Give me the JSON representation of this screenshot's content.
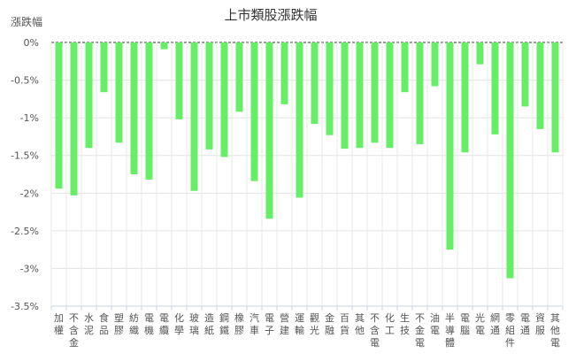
{
  "chart_data": {
    "type": "bar",
    "title": "上市類股漲跌幅",
    "ylabel": "漲跌幅",
    "xlabel": "",
    "ylim": [
      -3.5,
      0
    ],
    "yticks": [
      0,
      -0.5,
      -1,
      -1.5,
      -2,
      -2.5,
      -3,
      -3.5
    ],
    "ytick_labels": [
      "0%",
      "-0.5%",
      "-1%",
      "-1.5%",
      "-2%",
      "-2.5%",
      "-3%",
      "-3.5%"
    ],
    "grid": true,
    "bar_color": "#66ee66",
    "categories": [
      "加權",
      "不含金",
      "水泥",
      "食品",
      "塑膠",
      "紡織",
      "電機",
      "電纜",
      "化學",
      "玻璃",
      "造紙",
      "鋼鐵",
      "橡膠",
      "汽車",
      "電子",
      "營建",
      "運輸",
      "觀光",
      "金融",
      "百貨",
      "其他",
      "不含電",
      "化工",
      "生技",
      "不金電",
      "油電",
      "半導體",
      "電腦",
      "光電",
      "網通",
      "零組件",
      "電通",
      "資服",
      "其他電"
    ],
    "values": [
      -1.94,
      -2.03,
      -1.4,
      -0.66,
      -1.33,
      -1.75,
      -1.82,
      -0.09,
      -1.02,
      -1.97,
      -1.42,
      -1.52,
      -0.92,
      -1.84,
      -2.34,
      -0.82,
      -2.06,
      -1.08,
      -1.23,
      -1.41,
      -1.4,
      -1.33,
      -1.4,
      -0.66,
      -1.35,
      -0.58,
      -2.75,
      -1.46,
      -0.29,
      -1.22,
      -3.13,
      -0.85,
      -1.15,
      -1.46
    ]
  }
}
